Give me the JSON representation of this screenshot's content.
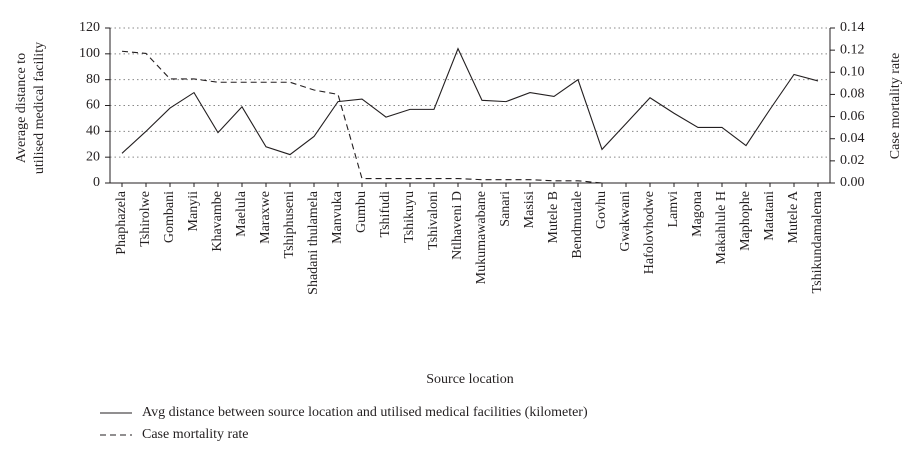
{
  "chart_data": {
    "type": "line",
    "x_label": "Source location",
    "y_label": [
      "Average distance to",
      "utilised medical facility"
    ],
    "y2_label": "Case mortality rate",
    "categories": [
      "Phaphazela",
      "Tshirolwe",
      "Gombani",
      "Manyii",
      "Khavambe",
      "Maelula",
      "Maraxwe",
      "Tshiphuseni",
      "Shadani thulamela",
      "Manvuka",
      "Gumbu",
      "Tshifudi",
      "Tshikuyu",
      "Tshivaloni",
      "Ntlhaveni D",
      "Mukumawabane",
      "Sanari",
      "Masisi",
      "Mutele B",
      "Bendmutale",
      "Govhu",
      "Gwakwani",
      "Hafolovhodwe",
      "Lamvi",
      "Magona",
      "Makahlule H",
      "Maphophe",
      "Matatani",
      "Mutele A",
      "Tshikundamalema"
    ],
    "series": [
      {
        "name": "Avg distance between source location and utilised medical facilities (kilometer)",
        "color": "#231f20",
        "style": "solid",
        "values": [
          23,
          40,
          58,
          70,
          39,
          59,
          28,
          22,
          36,
          63,
          65,
          51,
          57,
          57,
          104,
          64,
          63,
          70,
          67,
          80,
          26,
          46,
          66,
          54,
          43,
          43,
          29,
          57,
          84,
          79
        ]
      },
      {
        "name": "Case mortality rate",
        "color": "#231f20",
        "style": "dashed",
        "axis": "y2",
        "values": [
          0.119,
          0.117,
          0.094,
          0.094,
          0.091,
          0.091,
          0.091,
          0.091,
          0.084,
          0.08,
          0.004,
          0.004,
          0.004,
          0.004,
          0.004,
          0.003,
          0.003,
          0.003,
          0.002,
          0.002,
          0,
          0,
          0,
          0,
          0,
          0,
          0,
          0,
          0,
          0
        ]
      }
    ],
    "ylim": [
      0,
      120
    ],
    "yticks": [
      0,
      20,
      40,
      60,
      80,
      100,
      120
    ],
    "y2lim": [
      0,
      0.14
    ],
    "y2ticks": [
      {
        "value": 0,
        "label": "0.00"
      },
      {
        "value": 0.02,
        "label": "0.02"
      },
      {
        "value": 0.04,
        "label": "0.04"
      },
      {
        "value": 0.06,
        "label": "0.06"
      },
      {
        "value": 0.08,
        "label": "0.08"
      },
      {
        "value": 0.1,
        "label": "0.10"
      },
      {
        "value": 0.12,
        "label": "0.12"
      },
      {
        "value": 0.14,
        "label": "0.14"
      }
    ],
    "grid": true
  }
}
